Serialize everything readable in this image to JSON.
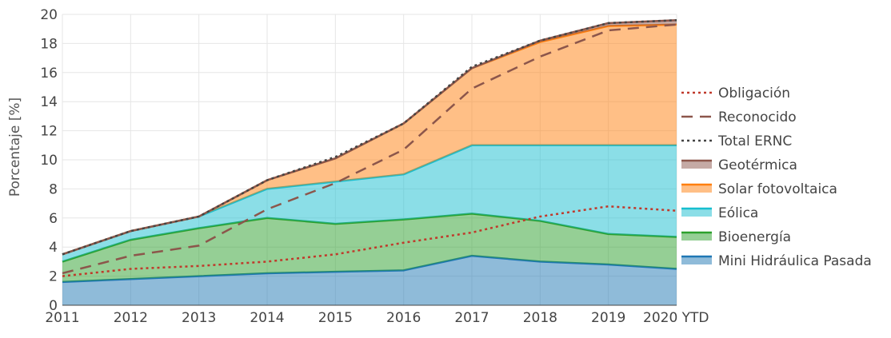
{
  "chart_data": {
    "type": "area",
    "stacked": true,
    "x": [
      "2011",
      "2012",
      "2013",
      "2014",
      "2015",
      "2016",
      "2017",
      "2018",
      "2019",
      "2020 YTD"
    ],
    "xlabel": "",
    "ylabel": "Porcentaje [%]",
    "ylim": [
      0,
      20
    ],
    "yticks": [
      0,
      2,
      4,
      6,
      8,
      10,
      12,
      14,
      16,
      18,
      20
    ],
    "grid": true,
    "legend_position": "right",
    "series": [
      {
        "name": "Mini Hidráulica Pasada",
        "kind": "stacked-area",
        "color": "#1f77b4",
        "values": [
          1.6,
          1.8,
          2.0,
          2.2,
          2.3,
          2.4,
          3.4,
          3.0,
          2.8,
          2.5
        ]
      },
      {
        "name": "Bioenergía",
        "kind": "stacked-area",
        "color": "#2ca02c",
        "values": [
          1.4,
          2.7,
          3.3,
          3.8,
          3.3,
          3.5,
          2.9,
          2.8,
          2.1,
          2.2
        ]
      },
      {
        "name": "Eólica",
        "kind": "stacked-area",
        "color": "#17becf",
        "values": [
          0.5,
          0.6,
          0.8,
          2.0,
          2.9,
          3.1,
          4.7,
          5.2,
          6.1,
          6.3
        ]
      },
      {
        "name": "Solar fotovoltaica",
        "kind": "stacked-area",
        "color": "#ff7f0e",
        "values": [
          0.0,
          0.0,
          0.0,
          0.6,
          1.6,
          3.5,
          5.3,
          7.1,
          8.2,
          8.3
        ]
      },
      {
        "name": "Geotérmica",
        "kind": "stacked-area",
        "color": "#8c564b",
        "values": [
          0.0,
          0.0,
          0.0,
          0.0,
          0.0,
          0.0,
          0.0,
          0.1,
          0.2,
          0.3
        ]
      },
      {
        "name": "Total ERNC",
        "kind": "line",
        "dash": "dotted",
        "color": "#444444",
        "values": [
          3.5,
          5.1,
          6.1,
          8.6,
          10.2,
          12.5,
          16.4,
          18.2,
          19.4,
          19.6
        ]
      },
      {
        "name": "Reconocido",
        "kind": "line",
        "dash": "dashed",
        "color": "#8c564b",
        "values": [
          2.2,
          3.4,
          4.1,
          6.6,
          8.4,
          10.7,
          14.9,
          17.1,
          18.9,
          19.3
        ]
      },
      {
        "name": "Obligación",
        "kind": "line",
        "dash": "dotted",
        "color": "#c0392b",
        "values": [
          2.0,
          2.5,
          2.7,
          3.0,
          3.5,
          4.3,
          5.0,
          6.1,
          6.8,
          6.5
        ]
      }
    ],
    "legend_order": [
      "Obligación",
      "Reconocido",
      "Total ERNC",
      "Geotérmica",
      "Solar fotovoltaica",
      "Eólica",
      "Bioenergía",
      "Mini Hidráulica Pasada"
    ]
  }
}
